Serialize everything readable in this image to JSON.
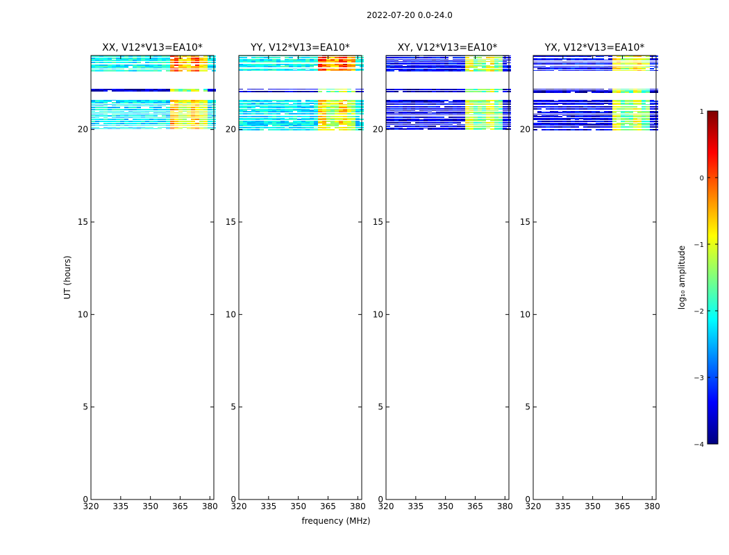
{
  "figure": {
    "suptitle": "2022-07-20 0.0-24.0",
    "xlabel": "frequency (MHz)",
    "ylabel": "UT (hours)"
  },
  "colorbar": {
    "label": "log₁₀ amplitude",
    "range": [
      -4,
      1
    ],
    "ticks": [
      1,
      0,
      -1,
      -2,
      -3,
      -4
    ],
    "tick_labels": [
      "1",
      "0",
      "−1",
      "−2",
      "−3",
      "−4"
    ],
    "colors": [
      "#00007f",
      "#0000ff",
      "#007fff",
      "#00ffff",
      "#7fff7f",
      "#ffff00",
      "#ff7f00",
      "#ff0000",
      "#7f0000"
    ]
  },
  "chart_data": [
    {
      "type": "heatmap",
      "title": "XX, V12*V13=EA10*",
      "xlabel": "",
      "ylabel": "UT (hours)",
      "xlim": [
        320,
        382
      ],
      "ylim": [
        0,
        24
      ],
      "xticks": [
        320,
        335,
        350,
        365,
        380
      ],
      "yticks": [
        0,
        5,
        10,
        15,
        20
      ],
      "bands": [
        {
          "from": 23.2,
          "to": 24.0,
          "base_log_amp": -2.1,
          "hot_region_MHz": [
            359,
            378
          ],
          "hot_log_amp": 0.0
        },
        {
          "from": 22.0,
          "to": 22.2,
          "base_log_amp": -3.6,
          "hot_region_MHz": [
            359,
            378
          ],
          "hot_log_amp": -1.0
        },
        {
          "from": 20.0,
          "to": 21.6,
          "base_log_amp": -2.2,
          "hot_region_MHz": [
            359,
            378
          ],
          "hot_log_amp": -0.4
        }
      ]
    },
    {
      "type": "heatmap",
      "title": "YY, V12*V13=EA10*",
      "xlabel": "frequency (MHz)",
      "ylabel": "",
      "xlim": [
        320,
        382
      ],
      "ylim": [
        0,
        24
      ],
      "xticks": [
        320,
        335,
        350,
        365,
        380
      ],
      "yticks": [
        0,
        5,
        10,
        15,
        20
      ],
      "bands": [
        {
          "from": 23.2,
          "to": 24.0,
          "base_log_amp": -2.1,
          "hot_region_MHz": [
            359,
            378
          ],
          "hot_log_amp": 0.2
        },
        {
          "from": 22.0,
          "to": 22.2,
          "base_log_amp": -3.6,
          "hot_region_MHz": [
            359,
            378
          ],
          "hot_log_amp": -1.0
        },
        {
          "from": 20.0,
          "to": 21.6,
          "base_log_amp": -2.2,
          "hot_region_MHz": [
            359,
            378
          ],
          "hot_log_amp": -0.6
        }
      ]
    },
    {
      "type": "heatmap",
      "title": "XY, V12*V13=EA10*",
      "xlabel": "",
      "ylabel": "",
      "xlim": [
        320,
        382
      ],
      "ylim": [
        0,
        24
      ],
      "xticks": [
        320,
        335,
        350,
        365,
        380
      ],
      "yticks": [
        0,
        5,
        10,
        15,
        20
      ],
      "bands": [
        {
          "from": 23.2,
          "to": 24.0,
          "base_log_amp": -3.4,
          "hot_region_MHz": [
            359,
            378
          ],
          "hot_log_amp": -0.9
        },
        {
          "from": 22.0,
          "to": 22.2,
          "base_log_amp": -3.7,
          "hot_region_MHz": [
            359,
            378
          ],
          "hot_log_amp": -1.1
        },
        {
          "from": 20.0,
          "to": 21.6,
          "base_log_amp": -3.5,
          "hot_region_MHz": [
            359,
            378
          ],
          "hot_log_amp": -1.0
        }
      ]
    },
    {
      "type": "heatmap",
      "title": "YX, V12*V13=EA10*",
      "xlabel": "",
      "ylabel": "",
      "xlim": [
        320,
        382
      ],
      "ylim": [
        0,
        24
      ],
      "xticks": [
        320,
        335,
        350,
        365,
        380
      ],
      "yticks": [
        0,
        5,
        10,
        15,
        20
      ],
      "bands": [
        {
          "from": 23.2,
          "to": 24.0,
          "base_log_amp": -3.4,
          "hot_region_MHz": [
            359,
            378
          ],
          "hot_log_amp": -0.6
        },
        {
          "from": 22.0,
          "to": 22.2,
          "base_log_amp": -3.7,
          "hot_region_MHz": [
            359,
            378
          ],
          "hot_log_amp": -1.0
        },
        {
          "from": 20.0,
          "to": 21.6,
          "base_log_amp": -3.5,
          "hot_region_MHz": [
            359,
            378
          ],
          "hot_log_amp": -1.0
        }
      ]
    }
  ]
}
